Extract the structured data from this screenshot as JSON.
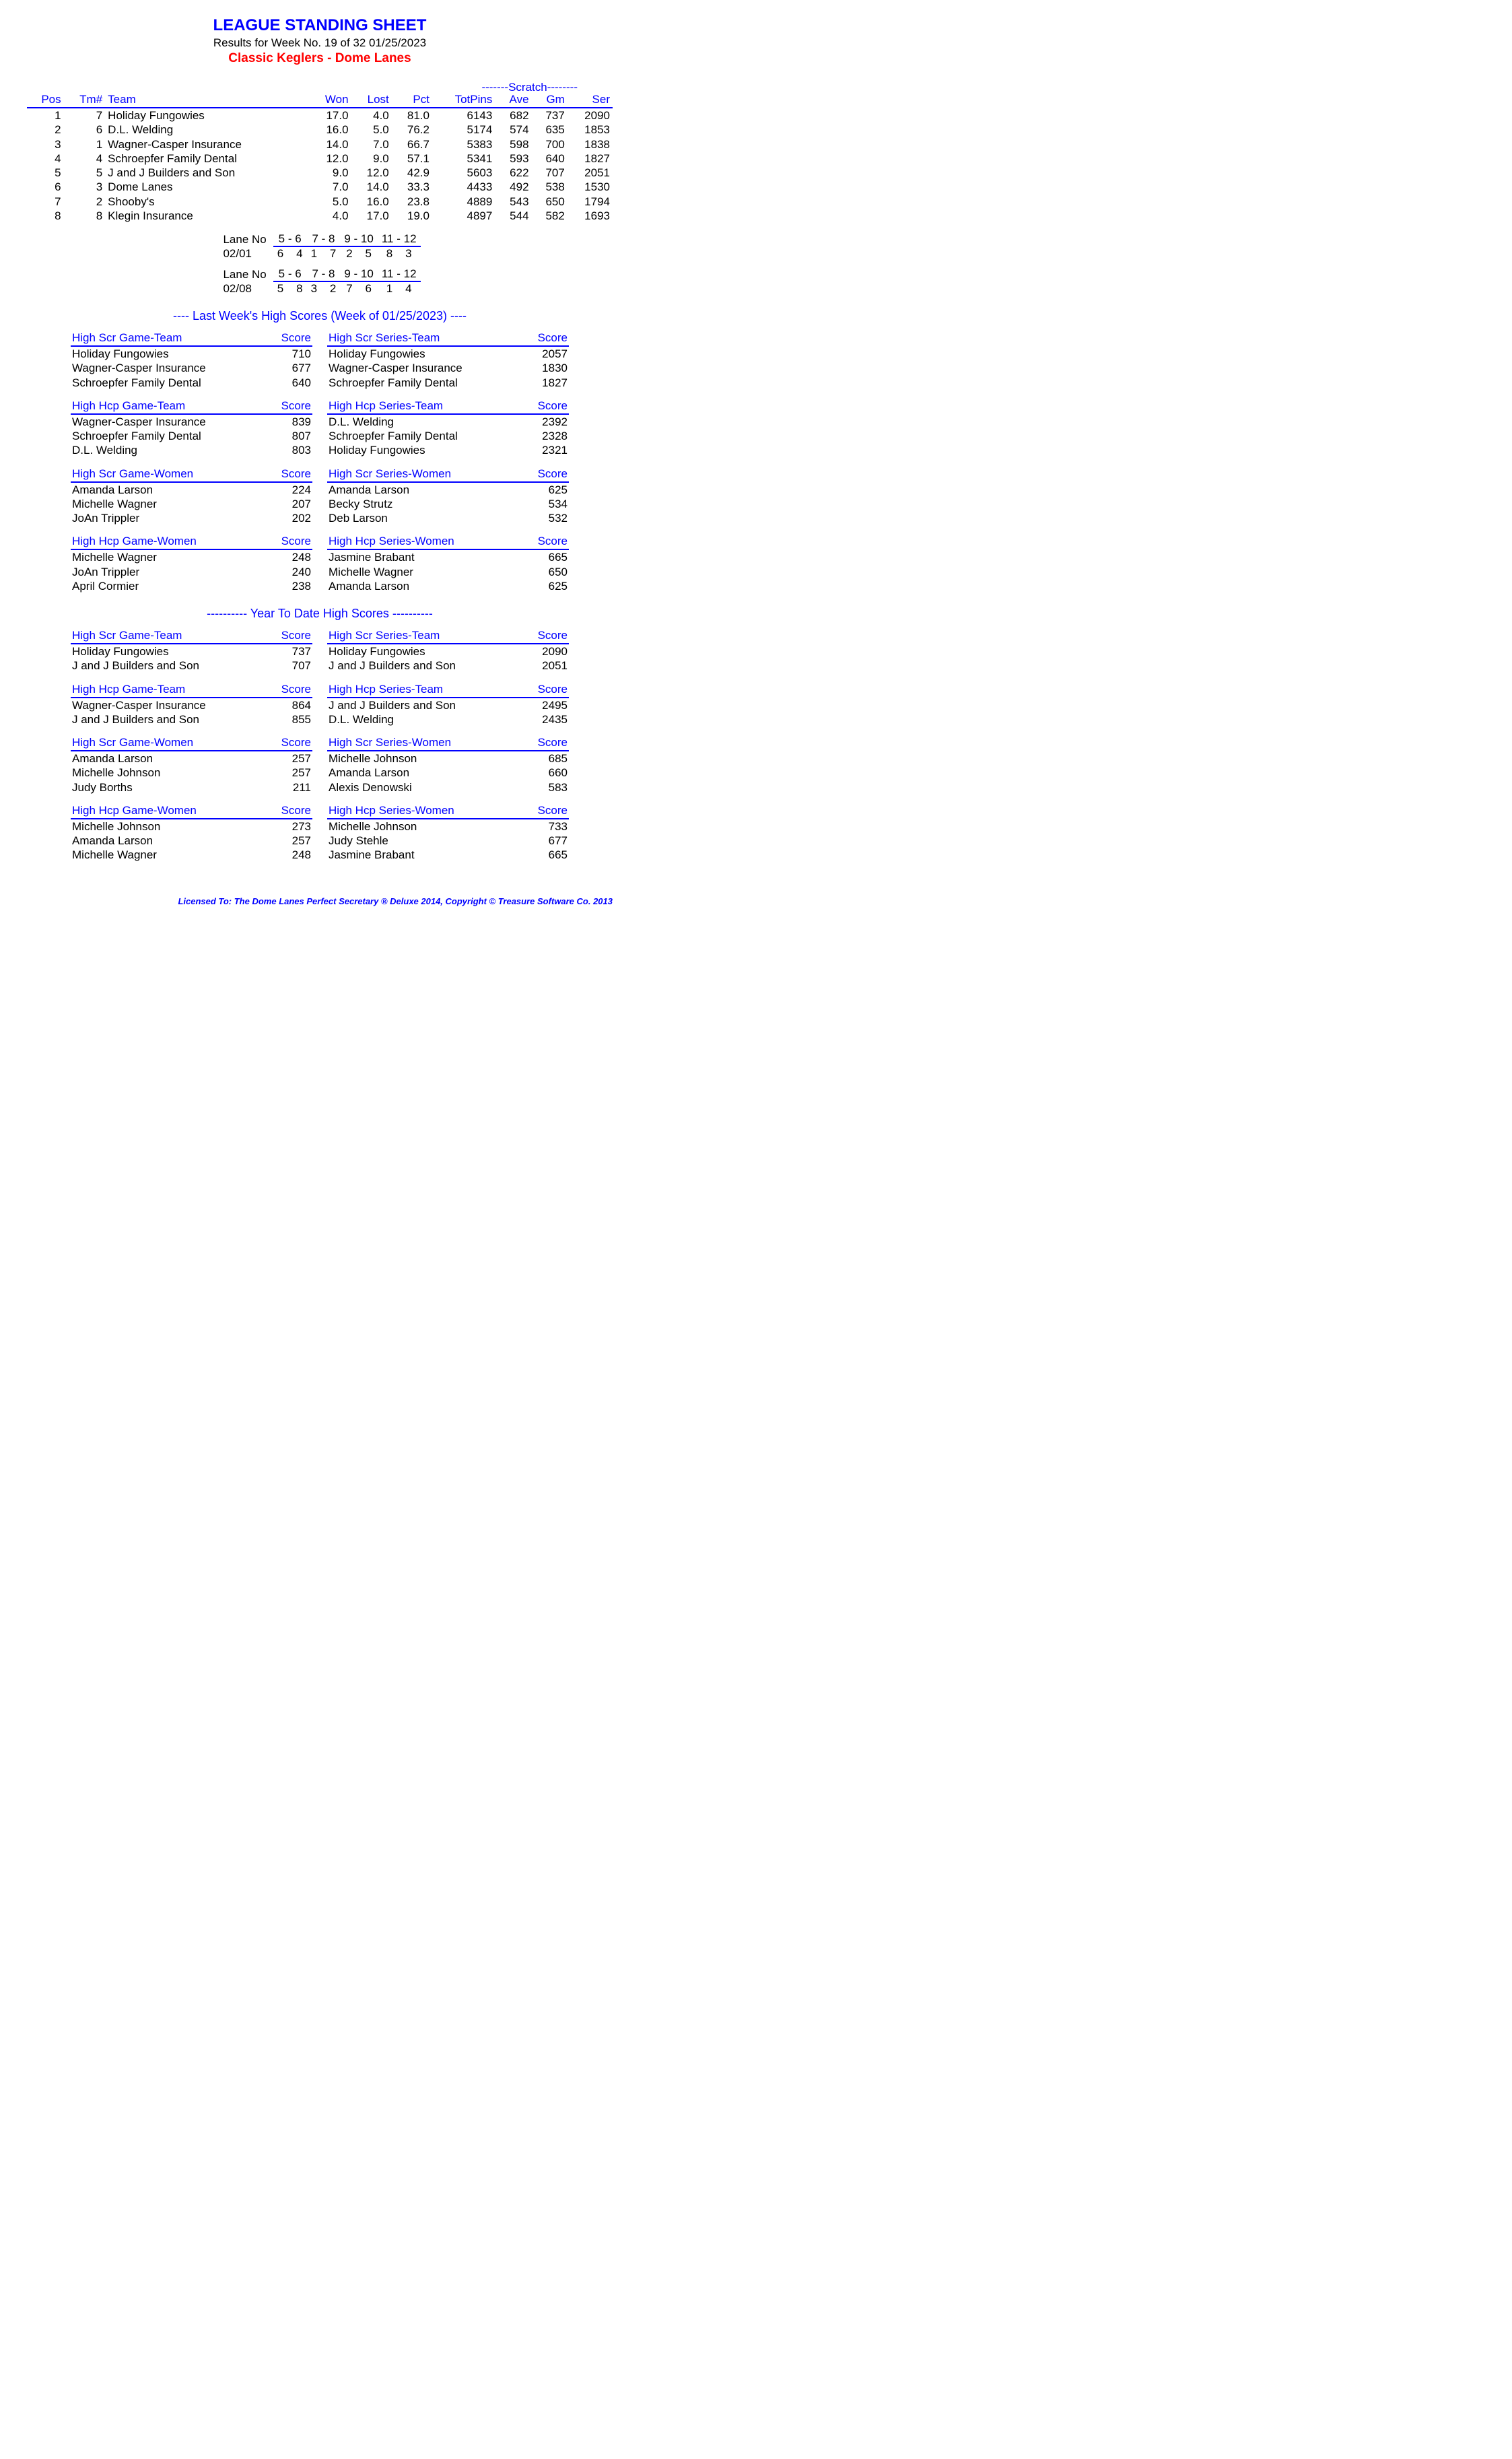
{
  "header": {
    "title": "LEAGUE STANDING SHEET",
    "subtitle": "Results for Week No. 19 of 32    01/25/2023",
    "league": "Classic Keglers - Dome Lanes"
  },
  "scratch_label": "-------Scratch--------",
  "standings": {
    "columns": [
      "Pos",
      "Tm#",
      "Team",
      "Won",
      "Lost",
      "Pct",
      "TotPins",
      "Ave",
      "Gm",
      "Ser"
    ],
    "rows": [
      [
        "1",
        "7",
        "Holiday Fungowies",
        "17.0",
        "4.0",
        "81.0",
        "6143",
        "682",
        "737",
        "2090"
      ],
      [
        "2",
        "6",
        "D.L. Welding",
        "16.0",
        "5.0",
        "76.2",
        "5174",
        "574",
        "635",
        "1853"
      ],
      [
        "3",
        "1",
        "Wagner-Casper Insurance",
        "14.0",
        "7.0",
        "66.7",
        "5383",
        "598",
        "700",
        "1838"
      ],
      [
        "4",
        "4",
        "Schroepfer Family Dental",
        "12.0",
        "9.0",
        "57.1",
        "5341",
        "593",
        "640",
        "1827"
      ],
      [
        "5",
        "5",
        "J and J Builders and Son",
        "9.0",
        "12.0",
        "42.9",
        "5603",
        "622",
        "707",
        "2051"
      ],
      [
        "6",
        "3",
        "Dome Lanes",
        "7.0",
        "14.0",
        "33.3",
        "4433",
        "492",
        "538",
        "1530"
      ],
      [
        "7",
        "2",
        "Shooby's",
        "5.0",
        "16.0",
        "23.8",
        "4889",
        "543",
        "650",
        "1794"
      ],
      [
        "8",
        "8",
        "Klegin Insurance",
        "4.0",
        "17.0",
        "19.0",
        "4897",
        "544",
        "582",
        "1693"
      ]
    ]
  },
  "lane_schedule": [
    {
      "label_header": "Lane No",
      "lanes": [
        "5 -  6",
        "7 -  8",
        "9 - 10",
        "11 - 12"
      ],
      "date": "02/01",
      "assignments": [
        "6    4",
        "1    7",
        "2    5",
        "8    3"
      ]
    },
    {
      "label_header": "Lane No",
      "lanes": [
        "5 -  6",
        "7 -  8",
        "9 - 10",
        "11 - 12"
      ],
      "date": "02/08",
      "assignments": [
        "5    8",
        "3    2",
        "7    6",
        "1    4"
      ]
    }
  ],
  "last_week": {
    "title": "----  Last Week's High Scores   (Week of 01/25/2023)  ----",
    "blocks": [
      {
        "header": "High Scr Game-Team",
        "score_hdr": "Score",
        "rows": [
          [
            "Holiday Fungowies",
            "710"
          ],
          [
            "Wagner-Casper Insurance",
            "677"
          ],
          [
            "Schroepfer Family Dental",
            "640"
          ]
        ]
      },
      {
        "header": "High Scr Series-Team",
        "score_hdr": "Score",
        "rows": [
          [
            "Holiday Fungowies",
            "2057"
          ],
          [
            "Wagner-Casper Insurance",
            "1830"
          ],
          [
            "Schroepfer Family Dental",
            "1827"
          ]
        ]
      },
      {
        "header": "High Hcp Game-Team",
        "score_hdr": "Score",
        "rows": [
          [
            "Wagner-Casper Insurance",
            "839"
          ],
          [
            "Schroepfer Family Dental",
            "807"
          ],
          [
            "D.L. Welding",
            "803"
          ]
        ]
      },
      {
        "header": "High Hcp Series-Team",
        "score_hdr": "Score",
        "rows": [
          [
            "D.L. Welding",
            "2392"
          ],
          [
            "Schroepfer Family Dental",
            "2328"
          ],
          [
            "Holiday Fungowies",
            "2321"
          ]
        ]
      },
      {
        "header": "High Scr Game-Women",
        "score_hdr": "Score",
        "rows": [
          [
            "Amanda Larson",
            "224"
          ],
          [
            "Michelle Wagner",
            "207"
          ],
          [
            "JoAn Trippler",
            "202"
          ]
        ]
      },
      {
        "header": "High Scr Series-Women",
        "score_hdr": "Score",
        "rows": [
          [
            "Amanda Larson",
            "625"
          ],
          [
            "Becky Strutz",
            "534"
          ],
          [
            "Deb Larson",
            "532"
          ]
        ]
      },
      {
        "header": "High Hcp Game-Women",
        "score_hdr": "Score",
        "rows": [
          [
            "Michelle Wagner",
            "248"
          ],
          [
            "JoAn Trippler",
            "240"
          ],
          [
            "April Cormier",
            "238"
          ]
        ]
      },
      {
        "header": "High Hcp Series-Women",
        "score_hdr": "Score",
        "rows": [
          [
            "Jasmine Brabant",
            "665"
          ],
          [
            "Michelle Wagner",
            "650"
          ],
          [
            "Amanda Larson",
            "625"
          ]
        ]
      }
    ]
  },
  "ytd": {
    "title": "---------- Year To Date High Scores ----------",
    "blocks": [
      {
        "header": "High Scr Game-Team",
        "score_hdr": "Score",
        "rows": [
          [
            "Holiday Fungowies",
            "737"
          ],
          [
            "J and J Builders and Son",
            "707"
          ]
        ]
      },
      {
        "header": "High Scr Series-Team",
        "score_hdr": "Score",
        "rows": [
          [
            "Holiday Fungowies",
            "2090"
          ],
          [
            "J and J Builders and Son",
            "2051"
          ]
        ]
      },
      {
        "header": "High Hcp Game-Team",
        "score_hdr": "Score",
        "rows": [
          [
            "Wagner-Casper Insurance",
            "864"
          ],
          [
            "J and J Builders and Son",
            "855"
          ]
        ]
      },
      {
        "header": "High Hcp Series-Team",
        "score_hdr": "Score",
        "rows": [
          [
            "J and J Builders and Son",
            "2495"
          ],
          [
            "D.L. Welding",
            "2435"
          ]
        ]
      },
      {
        "header": "High Scr Game-Women",
        "score_hdr": "Score",
        "rows": [
          [
            "Amanda Larson",
            "257"
          ],
          [
            "Michelle Johnson",
            "257"
          ],
          [
            "Judy Borths",
            "211"
          ]
        ]
      },
      {
        "header": "High Scr Series-Women",
        "score_hdr": "Score",
        "rows": [
          [
            "Michelle Johnson",
            "685"
          ],
          [
            "Amanda Larson",
            "660"
          ],
          [
            "Alexis Denowski",
            "583"
          ]
        ]
      },
      {
        "header": "High Hcp Game-Women",
        "score_hdr": "Score",
        "rows": [
          [
            "Michelle Johnson",
            "273"
          ],
          [
            "Amanda Larson",
            "257"
          ],
          [
            "Michelle Wagner",
            "248"
          ]
        ]
      },
      {
        "header": "High Hcp Series-Women",
        "score_hdr": "Score",
        "rows": [
          [
            "Michelle Johnson",
            "733"
          ],
          [
            "Judy Stehle",
            "677"
          ],
          [
            "Jasmine Brabant",
            "665"
          ]
        ]
      }
    ]
  },
  "footer": "Licensed To: The Dome Lanes    Perfect Secretary ® Deluxe  2014, Copyright © Treasure Software Co. 2013"
}
